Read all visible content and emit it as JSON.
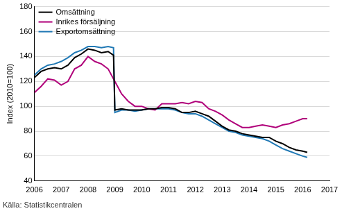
{
  "chart_data": {
    "type": "line",
    "y_label": "Index (2010=100)",
    "source": "Källa: Statistikcentralen",
    "x": [
      2006,
      2006.25,
      2006.5,
      2006.75,
      2007,
      2007.25,
      2007.5,
      2007.75,
      2008,
      2008.25,
      2008.5,
      2008.75,
      2008.95,
      2009,
      2009.25,
      2009.5,
      2009.75,
      2010,
      2010.25,
      2010.5,
      2010.75,
      2011,
      2011.25,
      2011.5,
      2011.75,
      2012,
      2012.25,
      2012.5,
      2012.75,
      2013,
      2013.25,
      2013.5,
      2013.75,
      2014,
      2014.25,
      2014.5,
      2014.75,
      2015,
      2015.25,
      2015.5,
      2015.75,
      2016,
      2016.17
    ],
    "series": [
      {
        "name": "Omsättning",
        "color": "#000000",
        "values": [
          123,
          128,
          130,
          131,
          130,
          133,
          139,
          142,
          146,
          145,
          143,
          144,
          141,
          97,
          98,
          97,
          97,
          97,
          98,
          98,
          99,
          99,
          98,
          95,
          95,
          96,
          94,
          92,
          88,
          84,
          81,
          80,
          78,
          77,
          76,
          75,
          75,
          72,
          70,
          67,
          65,
          64,
          63
        ]
      },
      {
        "name": "Inrikes försäljning",
        "color": "#b0007a",
        "values": [
          111,
          116,
          122,
          121,
          117,
          120,
          130,
          133,
          140,
          136,
          134,
          130,
          122,
          120,
          110,
          104,
          100,
          100,
          98,
          97,
          102,
          102,
          102,
          103,
          102,
          104,
          103,
          98,
          96,
          93,
          89,
          86,
          83,
          83,
          84,
          85,
          84,
          83,
          85,
          86,
          88,
          90,
          90
        ]
      },
      {
        "name": "Exportomsättning",
        "color": "#1f78b4",
        "values": [
          125,
          130,
          133,
          134,
          136,
          139,
          143,
          145,
          148,
          148,
          147,
          148,
          147,
          95,
          97,
          97,
          96,
          97,
          98,
          98,
          98,
          98,
          97,
          95,
          94,
          94,
          92,
          89,
          86,
          83,
          80,
          79,
          77,
          76,
          75,
          74,
          72,
          69,
          66,
          64,
          62,
          60,
          59
        ]
      }
    ],
    "xlim": [
      2006,
      2017
    ],
    "xticks": [
      2006,
      2007,
      2008,
      2009,
      2010,
      2011,
      2012,
      2013,
      2014,
      2015,
      2016,
      2017
    ],
    "ylim": [
      40,
      180
    ],
    "yticks": [
      40,
      60,
      80,
      100,
      120,
      140,
      160,
      180
    ],
    "grid": true,
    "legend": "top-left"
  }
}
